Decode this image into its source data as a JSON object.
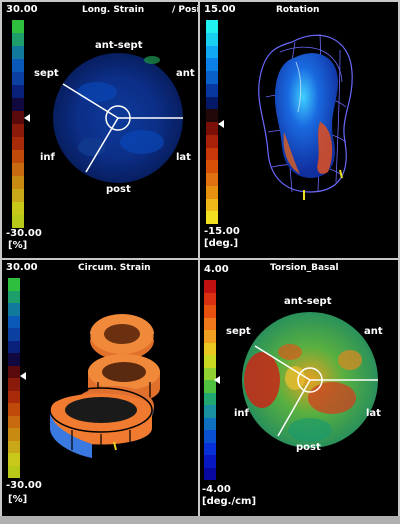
{
  "panels": {
    "long_strain": {
      "title": "Long. Strain",
      "title_extra": "/ Posi",
      "max": "30.00",
      "min": "-30.00",
      "unit": "[%]",
      "labels": {
        "ant_sept": "ant-sept",
        "sept": "sept",
        "ant": "ant",
        "inf": "inf",
        "lat": "lat",
        "post": "post"
      },
      "colors": [
        "#2fbf3f",
        "#1e9e6a",
        "#117a9c",
        "#0a58b8",
        "#0b3fa0",
        "#08207a",
        "#120840",
        "#5a0a0a",
        "#8a1a0a",
        "#a82a08",
        "#c04a0a",
        "#c86a10",
        "#c88a10",
        "#c8a818",
        "#c8c818",
        "#b8c818"
      ]
    },
    "rotation": {
      "title": "Rotation",
      "max": "15.00",
      "min": "-15.00",
      "unit": "[deg.]",
      "colors": [
        "#20f0f0",
        "#18d0f0",
        "#10a8f0",
        "#0a80e8",
        "#0860c8",
        "#0638a0",
        "#041868",
        "#200808",
        "#7a1008",
        "#a82008",
        "#c83808",
        "#d85008",
        "#e07010",
        "#e89010",
        "#f0b818",
        "#f0e020"
      ]
    },
    "circum_strain": {
      "title": "Circum. Strain",
      "max": "30.00",
      "min": "-30.00",
      "unit": "[%]",
      "colors": [
        "#2fbf3f",
        "#1e9e6a",
        "#117a9c",
        "#0a58b8",
        "#0b3fa0",
        "#08207a",
        "#120840",
        "#5a0a0a",
        "#8a1a0a",
        "#a82a08",
        "#c04a0a",
        "#c86a10",
        "#c88a10",
        "#c8a818",
        "#c8c818",
        "#b8c818"
      ]
    },
    "torsion_basal": {
      "title": "Torsion_Basal",
      "max": "4.00",
      "min": "-4.00",
      "unit": "[deg./cm]",
      "labels": {
        "ant_sept": "ant-sept",
        "sept": "sept",
        "ant": "ant",
        "inf": "inf",
        "lat": "lat",
        "post": "post"
      },
      "colors": [
        "#c01010",
        "#d83010",
        "#e85010",
        "#f07818",
        "#f0a020",
        "#e8c820",
        "#c8d820",
        "#90d030",
        "#50c040",
        "#20a870",
        "#1890a0",
        "#1070c0",
        "#0850d0",
        "#0830d8",
        "#0818c0",
        "#0808a0"
      ]
    }
  }
}
